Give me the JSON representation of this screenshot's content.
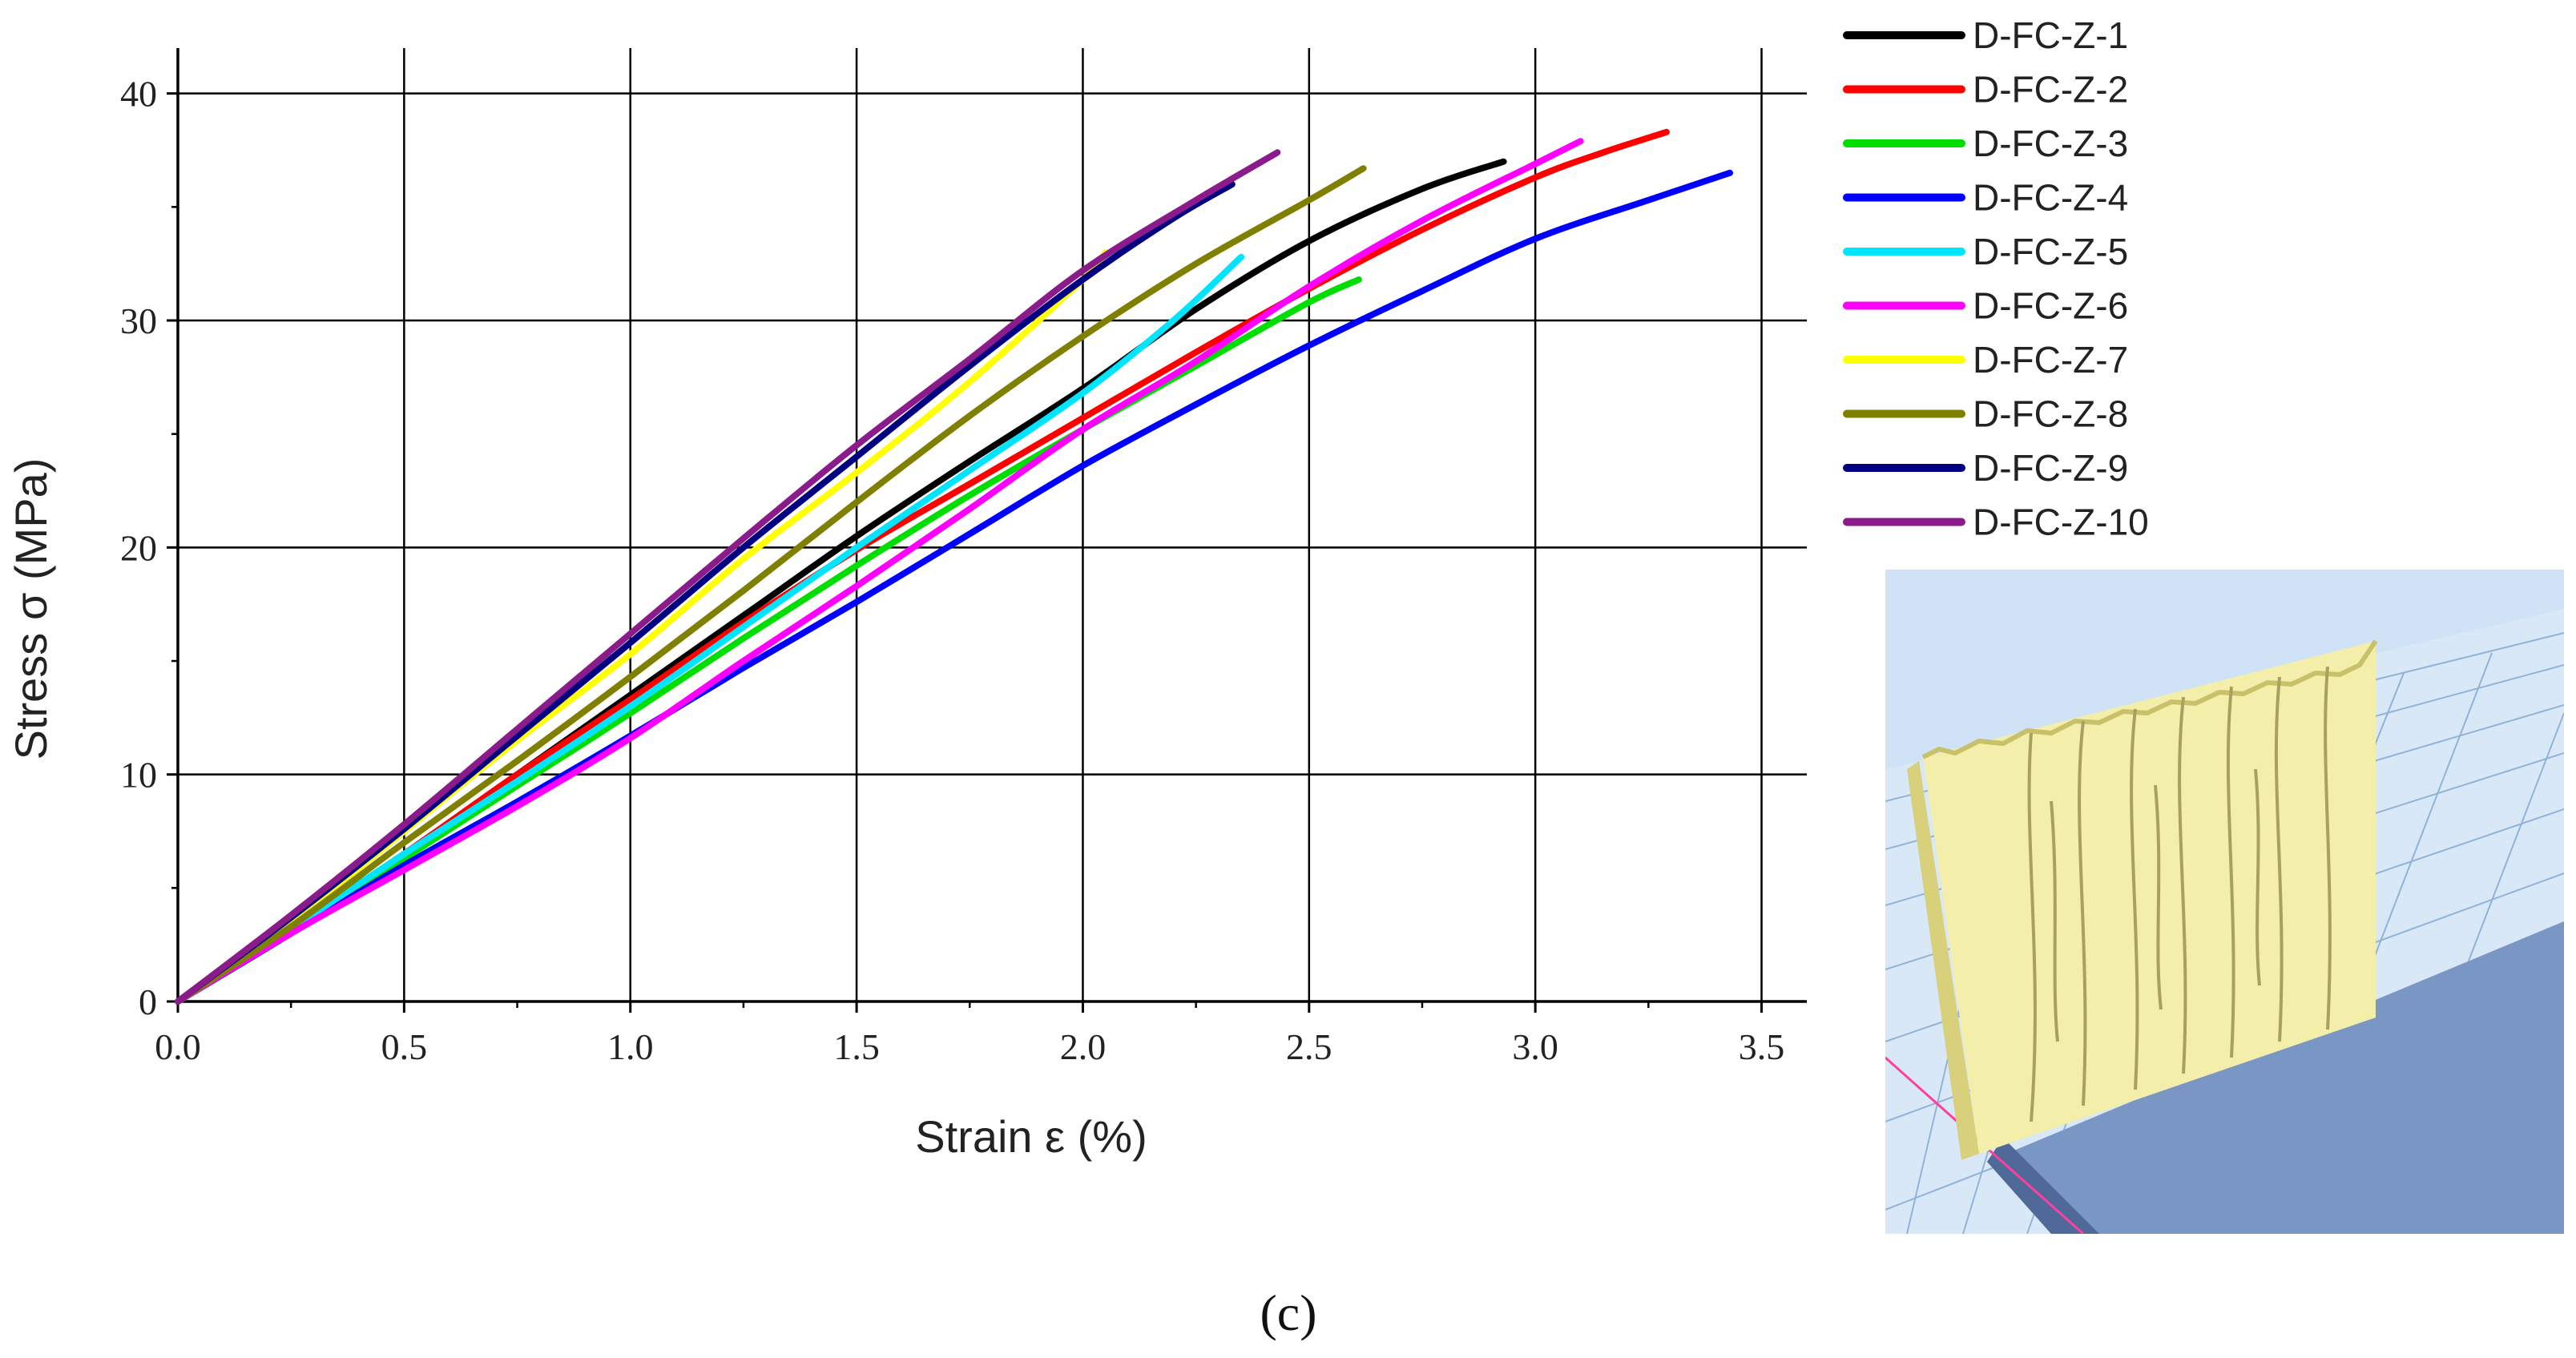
{
  "chart_data": {
    "type": "line",
    "title": "",
    "xlabel": "Strain ε (%)",
    "ylabel": "Stress σ (MPa)",
    "xlim": [
      0.0,
      3.6
    ],
    "ylim": [
      0,
      42
    ],
    "xticks": [
      "0.0",
      "0.5",
      "1.0",
      "1.5",
      "2.0",
      "2.5",
      "3.0",
      "3.5"
    ],
    "yticks": [
      "0",
      "10",
      "20",
      "30",
      "40"
    ],
    "grid": true,
    "legend_position": "top-right",
    "caption": "(c)",
    "series": [
      {
        "name": "D-FC-Z-1",
        "color": "#000000",
        "x": [
          0,
          0.25,
          0.5,
          0.75,
          1.0,
          1.25,
          1.5,
          1.75,
          2.0,
          2.25,
          2.5,
          2.75,
          2.93
        ],
        "y": [
          0,
          3.2,
          6.5,
          10.0,
          13.5,
          17.0,
          20.5,
          23.8,
          27.0,
          30.5,
          33.5,
          35.8,
          37.0
        ]
      },
      {
        "name": "D-FC-Z-2",
        "color": "#ff0000",
        "x": [
          0,
          0.25,
          0.5,
          0.75,
          1.0,
          1.25,
          1.5,
          1.75,
          2.0,
          2.25,
          2.5,
          2.75,
          3.0,
          3.15,
          3.29
        ],
        "y": [
          0,
          3.2,
          6.5,
          10.0,
          13.3,
          16.7,
          19.9,
          22.8,
          25.7,
          28.6,
          31.4,
          34.0,
          36.3,
          37.4,
          38.3
        ]
      },
      {
        "name": "D-FC-Z-3",
        "color": "#00dd00",
        "x": [
          0,
          0.25,
          0.5,
          0.75,
          1.0,
          1.25,
          1.5,
          1.75,
          2.0,
          2.25,
          2.5,
          2.61
        ],
        "y": [
          0,
          3.0,
          6.3,
          9.5,
          12.7,
          16.0,
          19.2,
          22.3,
          25.2,
          28.0,
          30.8,
          31.8
        ]
      },
      {
        "name": "D-FC-Z-4",
        "color": "#0000ff",
        "x": [
          0,
          0.25,
          0.5,
          0.75,
          1.0,
          1.25,
          1.5,
          1.75,
          2.0,
          2.25,
          2.5,
          2.75,
          3.0,
          3.25,
          3.43
        ],
        "y": [
          0,
          3.0,
          6.0,
          8.8,
          11.7,
          14.7,
          17.6,
          20.6,
          23.6,
          26.3,
          28.9,
          31.3,
          33.6,
          35.3,
          36.5
        ]
      },
      {
        "name": "D-FC-Z-5",
        "color": "#00e5ff",
        "x": [
          0,
          0.25,
          0.5,
          0.75,
          1.0,
          1.25,
          1.5,
          1.75,
          2.0,
          2.2,
          2.35
        ],
        "y": [
          0,
          3.2,
          6.5,
          9.7,
          13.0,
          16.5,
          20.0,
          23.4,
          26.8,
          30.0,
          32.8
        ]
      },
      {
        "name": "D-FC-Z-6",
        "color": "#ff00ff",
        "x": [
          0,
          0.25,
          0.5,
          0.75,
          1.0,
          1.25,
          1.5,
          1.75,
          2.0,
          2.25,
          2.5,
          2.75,
          3.0,
          3.1
        ],
        "y": [
          0,
          3.0,
          5.8,
          8.6,
          11.6,
          15.0,
          18.3,
          21.7,
          25.2,
          28.2,
          31.5,
          34.4,
          36.9,
          37.9
        ]
      },
      {
        "name": "D-FC-Z-7",
        "color": "#ffff00",
        "x": [
          0,
          0.25,
          0.5,
          0.75,
          1.0,
          1.25,
          1.5,
          1.75,
          2.0,
          2.05
        ],
        "y": [
          0,
          3.5,
          7.5,
          11.5,
          15.3,
          19.5,
          23.3,
          27.3,
          31.8,
          33.0
        ]
      },
      {
        "name": "D-FC-Z-8",
        "color": "#808000",
        "x": [
          0,
          0.25,
          0.5,
          0.75,
          1.0,
          1.25,
          1.5,
          1.75,
          2.0,
          2.25,
          2.5,
          2.62
        ],
        "y": [
          0,
          3.3,
          7.0,
          10.6,
          14.3,
          18.1,
          22.0,
          25.8,
          29.3,
          32.5,
          35.3,
          36.7
        ]
      },
      {
        "name": "D-FC-Z-9",
        "color": "#000080",
        "x": [
          0,
          0.25,
          0.5,
          0.75,
          1.0,
          1.25,
          1.5,
          1.75,
          2.0,
          2.2,
          2.33
        ],
        "y": [
          0,
          3.7,
          7.6,
          11.7,
          15.8,
          20.0,
          24.0,
          28.0,
          31.8,
          34.5,
          36.0
        ]
      },
      {
        "name": "D-FC-Z-10",
        "color": "#8b1a8b",
        "x": [
          0,
          0.25,
          0.5,
          0.75,
          1.0,
          1.25,
          1.5,
          1.75,
          2.0,
          2.25,
          2.43
        ],
        "y": [
          0,
          3.8,
          7.8,
          12.0,
          16.2,
          20.4,
          24.5,
          28.3,
          32.2,
          35.3,
          37.4
        ]
      }
    ]
  }
}
